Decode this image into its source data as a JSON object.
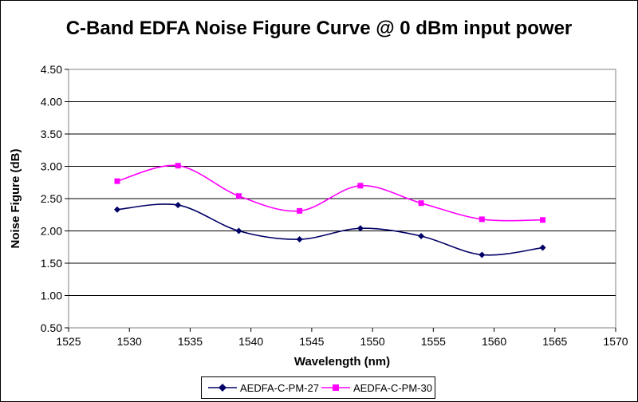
{
  "chart_data": {
    "type": "line",
    "title": "C-Band EDFA Noise Figure Curve @ 0 dBm input power",
    "xlabel": "Wavelength (nm)",
    "ylabel": "Noise Figure (dB)",
    "xlim": [
      1525,
      1570
    ],
    "ylim": [
      0.5,
      4.5
    ],
    "x_ticks": [
      "1525",
      "1530",
      "1535",
      "1540",
      "1545",
      "1550",
      "1555",
      "1560",
      "1565",
      "1570"
    ],
    "y_ticks": [
      "0.50",
      "1.00",
      "1.50",
      "2.00",
      "2.50",
      "3.00",
      "3.50",
      "4.00",
      "4.50"
    ],
    "grid": "horizontal",
    "legend_position": "bottom",
    "series": [
      {
        "name": "AEDFA-C-PM-27",
        "color": "#000066",
        "marker": "diamond",
        "x": [
          1529,
          1534,
          1539,
          1544,
          1549,
          1554,
          1559,
          1564
        ],
        "y": [
          2.33,
          2.4,
          2.0,
          1.87,
          2.04,
          1.92,
          1.63,
          1.74
        ]
      },
      {
        "name": "AEDFA-C-PM-30",
        "color": "#ff00ff",
        "marker": "square",
        "x": [
          1529,
          1534,
          1539,
          1544,
          1549,
          1554,
          1559,
          1564
        ],
        "y": [
          2.77,
          3.01,
          2.54,
          2.31,
          2.7,
          2.43,
          2.18,
          2.17
        ]
      }
    ]
  }
}
